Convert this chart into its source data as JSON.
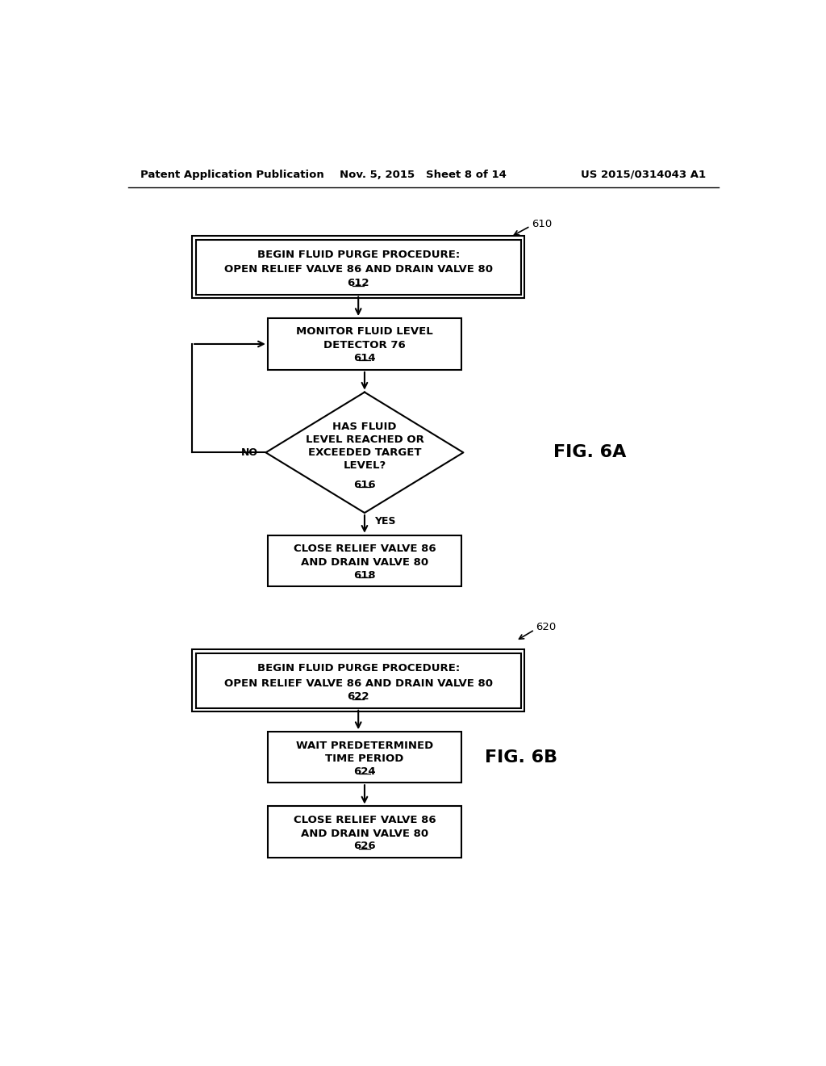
{
  "background_color": "#ffffff",
  "header_left": "Patent Application Publication",
  "header_mid": "Nov. 5, 2015   Sheet 8 of 14",
  "header_right": "US 2015/0314043 A1",
  "fig6a_label": "FIG. 6A",
  "fig6b_label": "FIG. 6B",
  "ref_610": "610",
  "ref_620": "620",
  "flowchart_6a": {
    "box612_line1": "BEGIN FLUID PURGE PROCEDURE:",
    "box612_line2": "OPEN RELIEF VALVE 86 AND DRAIN VALVE 80",
    "box612_ref": "612",
    "box614_line1": "MONITOR FLUID LEVEL",
    "box614_line2": "DETECTOR 76",
    "box614_ref": "614",
    "diamond616_line1": "HAS FLUID",
    "diamond616_line2": "LEVEL REACHED OR",
    "diamond616_line3": "EXCEEDED TARGET",
    "diamond616_line4": "LEVEL?",
    "diamond616_ref": "616",
    "box618_line1": "CLOSE RELIEF VALVE 86",
    "box618_line2": "AND DRAIN VALVE 80",
    "box618_ref": "618",
    "no_label": "NO",
    "yes_label": "YES"
  },
  "flowchart_6b": {
    "box622_line1": "BEGIN FLUID PURGE PROCEDURE:",
    "box622_line2": "OPEN RELIEF VALVE 86 AND DRAIN VALVE 80",
    "box622_ref": "622",
    "box624_line1": "WAIT PREDETERMINED",
    "box624_line2": "TIME PERIOD",
    "box624_ref": "624",
    "box626_line1": "CLOSE RELIEF VALVE 86",
    "box626_line2": "AND DRAIN VALVE 80",
    "box626_ref": "626"
  }
}
